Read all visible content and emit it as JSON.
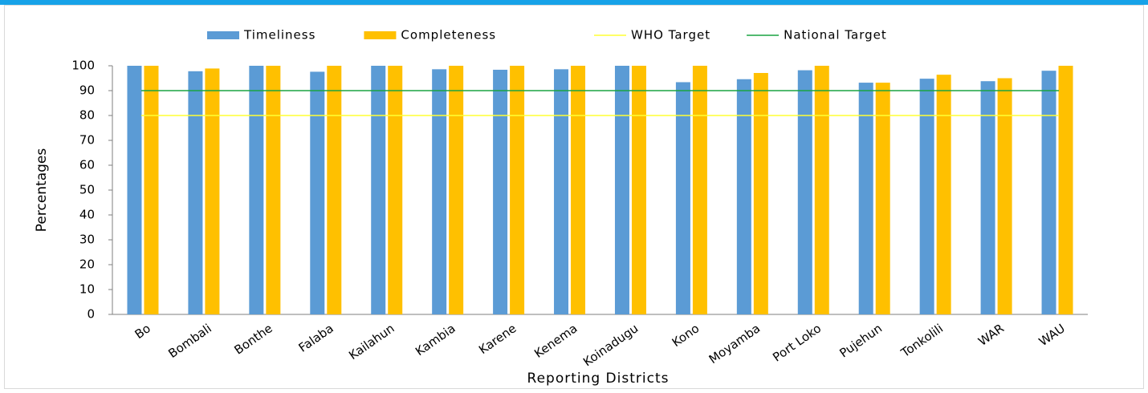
{
  "chart_data": {
    "type": "bar",
    "x_label": "Reporting Districts",
    "y_label": "Percentages",
    "categories": [
      "Bo",
      "Bombali",
      "Bonthe",
      "Falaba",
      "Kailahun",
      "Kambia",
      "Karene",
      "Kenema",
      "Koinadugu",
      "Kono",
      "Moyamba",
      "Port Loko",
      "Pujehun",
      "Tonkolili",
      "WAR",
      "WAU"
    ],
    "series": [
      {
        "name": "Timeliness",
        "color": "#5b9bd5",
        "values": [
          100,
          97.8,
          100,
          97.6,
          100,
          98.6,
          98.4,
          98.6,
          100,
          93.4,
          94.6,
          98.2,
          93.2,
          94.8,
          93.8,
          98
        ]
      },
      {
        "name": "Completeness",
        "color": "#ffc000",
        "values": [
          100,
          98.9,
          100,
          100,
          100,
          100,
          100,
          100,
          100,
          100,
          97.1,
          100,
          93.2,
          96.4,
          95,
          100
        ]
      }
    ],
    "reference_lines": [
      {
        "name": "WHO Target",
        "color": "#ffff33",
        "value": 80
      },
      {
        "name": "National Target",
        "color": "#1aa342",
        "value": 90
      }
    ],
    "ylim": [
      0,
      100
    ],
    "yticks": [
      0,
      10,
      20,
      30,
      40,
      50,
      60,
      70,
      80,
      90,
      100
    ],
    "legend": "top"
  }
}
